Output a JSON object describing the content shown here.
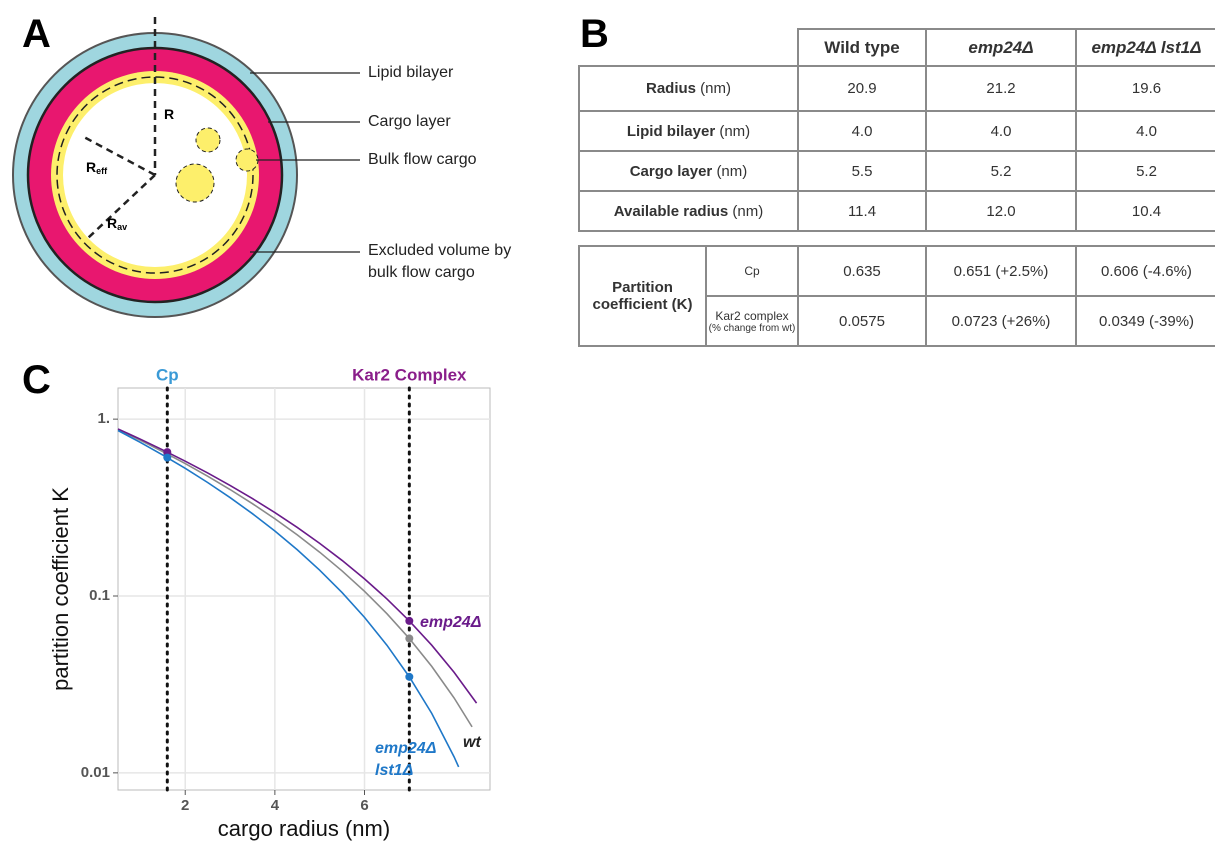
{
  "panel_a": {
    "label": "A",
    "callouts": [
      "Lipid bilayer",
      "Cargo layer",
      "Bulk flow cargo",
      "Excluded volume by bulk flow cargo"
    ],
    "radius_labels": [
      {
        "text": "R"
      },
      {
        "text": "R",
        "sub": "eff"
      },
      {
        "text": "R",
        "sub": "av"
      }
    ]
  },
  "panel_b": {
    "label": "B",
    "columns": [
      "Wild type",
      "emp24Δ",
      "emp24Δ lst1Δ"
    ],
    "rows": [
      {
        "label": "Radius",
        "unit": "(nm)",
        "values": [
          "20.9",
          "21.2",
          "19.6"
        ]
      },
      {
        "label": "Lipid bilayer",
        "unit": "(nm)",
        "values": [
          "4.0",
          "4.0",
          "4.0"
        ]
      },
      {
        "label": "Cargo layer",
        "unit": "(nm)",
        "values": [
          "5.5",
          "5.2",
          "5.2"
        ]
      },
      {
        "label": "Available radius",
        "unit": "(nm)",
        "values": [
          "11.4",
          "12.0",
          "10.4"
        ]
      }
    ],
    "partition": {
      "label": "Partition coefficient (K)",
      "rows": [
        {
          "label": "Cp",
          "values": [
            "0.635",
            "0.651 (+2.5%)",
            "0.606 (-4.6%)"
          ]
        },
        {
          "label": "Kar2 complex",
          "note": "(% change from wt)",
          "values": [
            "0.0575",
            "0.0723 (+26%)",
            "0.0349 (-39%)"
          ]
        }
      ]
    }
  },
  "chart_data": {
    "type": "line",
    "panel_label": "C",
    "xlabel": "cargo radius (nm)",
    "ylabel": "partition coefficient K",
    "xlim": [
      0.5,
      8.8
    ],
    "ylim": [
      0.008,
      1.5
    ],
    "log_y": true,
    "grid": true,
    "xticks": [
      2,
      4,
      6
    ],
    "yticks": [
      {
        "value": 1,
        "label": "1."
      },
      0.1,
      0.01
    ],
    "vlines": [
      {
        "x": 1.6,
        "label": "Cp",
        "color": "#3a9ad6"
      },
      {
        "x": 7,
        "label": "Kar2 Complex",
        "color": "#8a1e8a"
      }
    ],
    "series": [
      {
        "name": "wt",
        "color": "#8a8a8a",
        "x": [
          0.5,
          1,
          1.5,
          2,
          2.5,
          3,
          3.5,
          4,
          4.5,
          5,
          5.5,
          6,
          6.5,
          7,
          7.5,
          8,
          8.4
        ],
        "values": [
          0.8741,
          0.7592,
          0.6549,
          0.5606,
          0.4758,
          0.4001,
          0.3328,
          0.2735,
          0.2217,
          0.1769,
          0.1386,
          0.1063,
          0.0794,
          0.0575,
          0.04,
          0.0265,
          0.0182
        ],
        "marker_x": [
          1.6,
          7
        ],
        "marker_values": [
          0.635,
          0.0575
        ]
      },
      {
        "name": "emp24Δ",
        "color": "#6a1b8a",
        "x": [
          0.5,
          1,
          1.5,
          2,
          2.5,
          3,
          3.5,
          4,
          4.5,
          5,
          5.5,
          6,
          6.5,
          7,
          7.5,
          8,
          8.5
        ],
        "values": [
          0.8801,
          0.7703,
          0.6699,
          0.5787,
          0.4962,
          0.4219,
          0.3554,
          0.2963,
          0.2441,
          0.1985,
          0.1589,
          0.125,
          0.0963,
          0.0723,
          0.0527,
          0.037,
          0.0248
        ],
        "marker_x": [
          1.6,
          7
        ],
        "marker_values": [
          0.651,
          0.0723
        ]
      },
      {
        "name": "emp24Δ lst1Δ",
        "color": "#1f78c8",
        "x": [
          0.5,
          1,
          1.5,
          2,
          2.5,
          3,
          3.5,
          4,
          4.5,
          5,
          5.5,
          6,
          6.5,
          7,
          7.5,
          8,
          8.1
        ],
        "values": [
          0.8626,
          0.7384,
          0.6267,
          0.5269,
          0.4383,
          0.3602,
          0.292,
          0.2331,
          0.1826,
          0.14,
          0.1046,
          0.0757,
          0.0527,
          0.0349,
          0.0217,
          0.0123,
          0.0108
        ],
        "marker_x": [
          1.6,
          7
        ],
        "marker_values": [
          0.606,
          0.0349
        ]
      }
    ]
  }
}
